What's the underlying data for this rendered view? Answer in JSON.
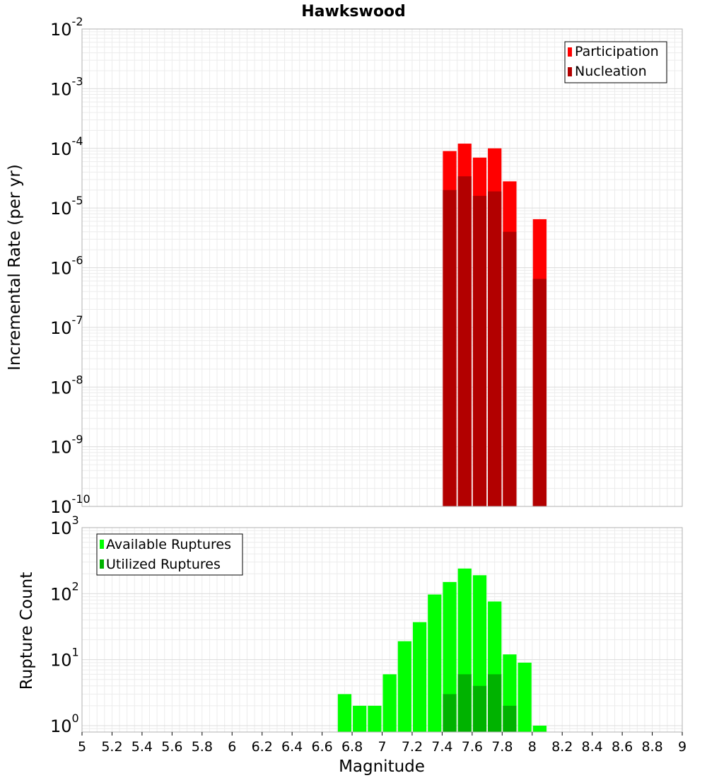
{
  "title": "Hawkswood",
  "chart_data": [
    {
      "type": "bar",
      "ylabel": "Incremental Rate (per yr)",
      "xlabel": "",
      "yscale": "log",
      "ylim": [
        1e-10,
        0.01
      ],
      "xlim": [
        5,
        9
      ],
      "legend_position": "top-right",
      "y_tick_labels": [
        {
          "base": "10",
          "exp": "-10",
          "value": 1e-10
        },
        {
          "base": "10",
          "exp": "-9",
          "value": 1e-09
        },
        {
          "base": "10",
          "exp": "-8",
          "value": 1e-08
        },
        {
          "base": "10",
          "exp": "-7",
          "value": 1e-07
        },
        {
          "base": "10",
          "exp": "-6",
          "value": 1e-06
        },
        {
          "base": "10",
          "exp": "-5",
          "value": 1e-05
        },
        {
          "base": "10",
          "exp": "-4",
          "value": 0.0001
        },
        {
          "base": "10",
          "exp": "-3",
          "value": 0.001
        },
        {
          "base": "10",
          "exp": "-2",
          "value": 0.01
        }
      ],
      "series": [
        {
          "name": "Participation",
          "color": "#ff0000",
          "points": [
            {
              "x": 7.45,
              "y": 9e-05
            },
            {
              "x": 7.55,
              "y": 0.00012
            },
            {
              "x": 7.65,
              "y": 7e-05
            },
            {
              "x": 7.75,
              "y": 0.0001
            },
            {
              "x": 7.85,
              "y": 2.8e-05
            },
            {
              "x": 8.05,
              "y": 6.5e-06
            }
          ]
        },
        {
          "name": "Nucleation",
          "color": "#b20000",
          "points": [
            {
              "x": 7.45,
              "y": 2e-05
            },
            {
              "x": 7.55,
              "y": 3.4e-05
            },
            {
              "x": 7.65,
              "y": 1.6e-05
            },
            {
              "x": 7.75,
              "y": 1.9e-05
            },
            {
              "x": 7.85,
              "y": 4e-06
            },
            {
              "x": 8.05,
              "y": 6.5e-07
            }
          ]
        }
      ]
    },
    {
      "type": "bar",
      "ylabel": "Rupture Count",
      "xlabel": "Magnitude",
      "yscale": "log",
      "ylim": [
        0.8,
        1000
      ],
      "xlim": [
        5,
        9
      ],
      "legend_position": "top-left",
      "y_tick_labels": [
        {
          "base": "10",
          "exp": "0",
          "value": 1
        },
        {
          "base": "10",
          "exp": "1",
          "value": 10
        },
        {
          "base": "10",
          "exp": "2",
          "value": 100
        },
        {
          "base": "10",
          "exp": "3",
          "value": 1000
        }
      ],
      "x_tick_labels": [
        "5",
        "5.2",
        "5.4",
        "5.6",
        "5.8",
        "6",
        "6.2",
        "6.4",
        "6.6",
        "6.8",
        "7",
        "7.2",
        "7.4",
        "7.6",
        "7.8",
        "8",
        "8.2",
        "8.4",
        "8.6",
        "8.8",
        "9"
      ],
      "series": [
        {
          "name": "Available Ruptures",
          "color": "#00ff00",
          "points": [
            {
              "x": 6.75,
              "y": 3
            },
            {
              "x": 6.85,
              "y": 2
            },
            {
              "x": 6.95,
              "y": 2
            },
            {
              "x": 7.05,
              "y": 6
            },
            {
              "x": 7.15,
              "y": 19
            },
            {
              "x": 7.25,
              "y": 37
            },
            {
              "x": 7.35,
              "y": 97
            },
            {
              "x": 7.45,
              "y": 150
            },
            {
              "x": 7.55,
              "y": 240
            },
            {
              "x": 7.65,
              "y": 190
            },
            {
              "x": 7.75,
              "y": 76
            },
            {
              "x": 7.85,
              "y": 12
            },
            {
              "x": 7.95,
              "y": 9
            },
            {
              "x": 8.05,
              "y": 1
            }
          ]
        },
        {
          "name": "Utilized Ruptures",
          "color": "#00b200",
          "points": [
            {
              "x": 7.45,
              "y": 3
            },
            {
              "x": 7.55,
              "y": 6
            },
            {
              "x": 7.65,
              "y": 4
            },
            {
              "x": 7.75,
              "y": 6
            },
            {
              "x": 7.85,
              "y": 2
            }
          ]
        }
      ]
    }
  ]
}
